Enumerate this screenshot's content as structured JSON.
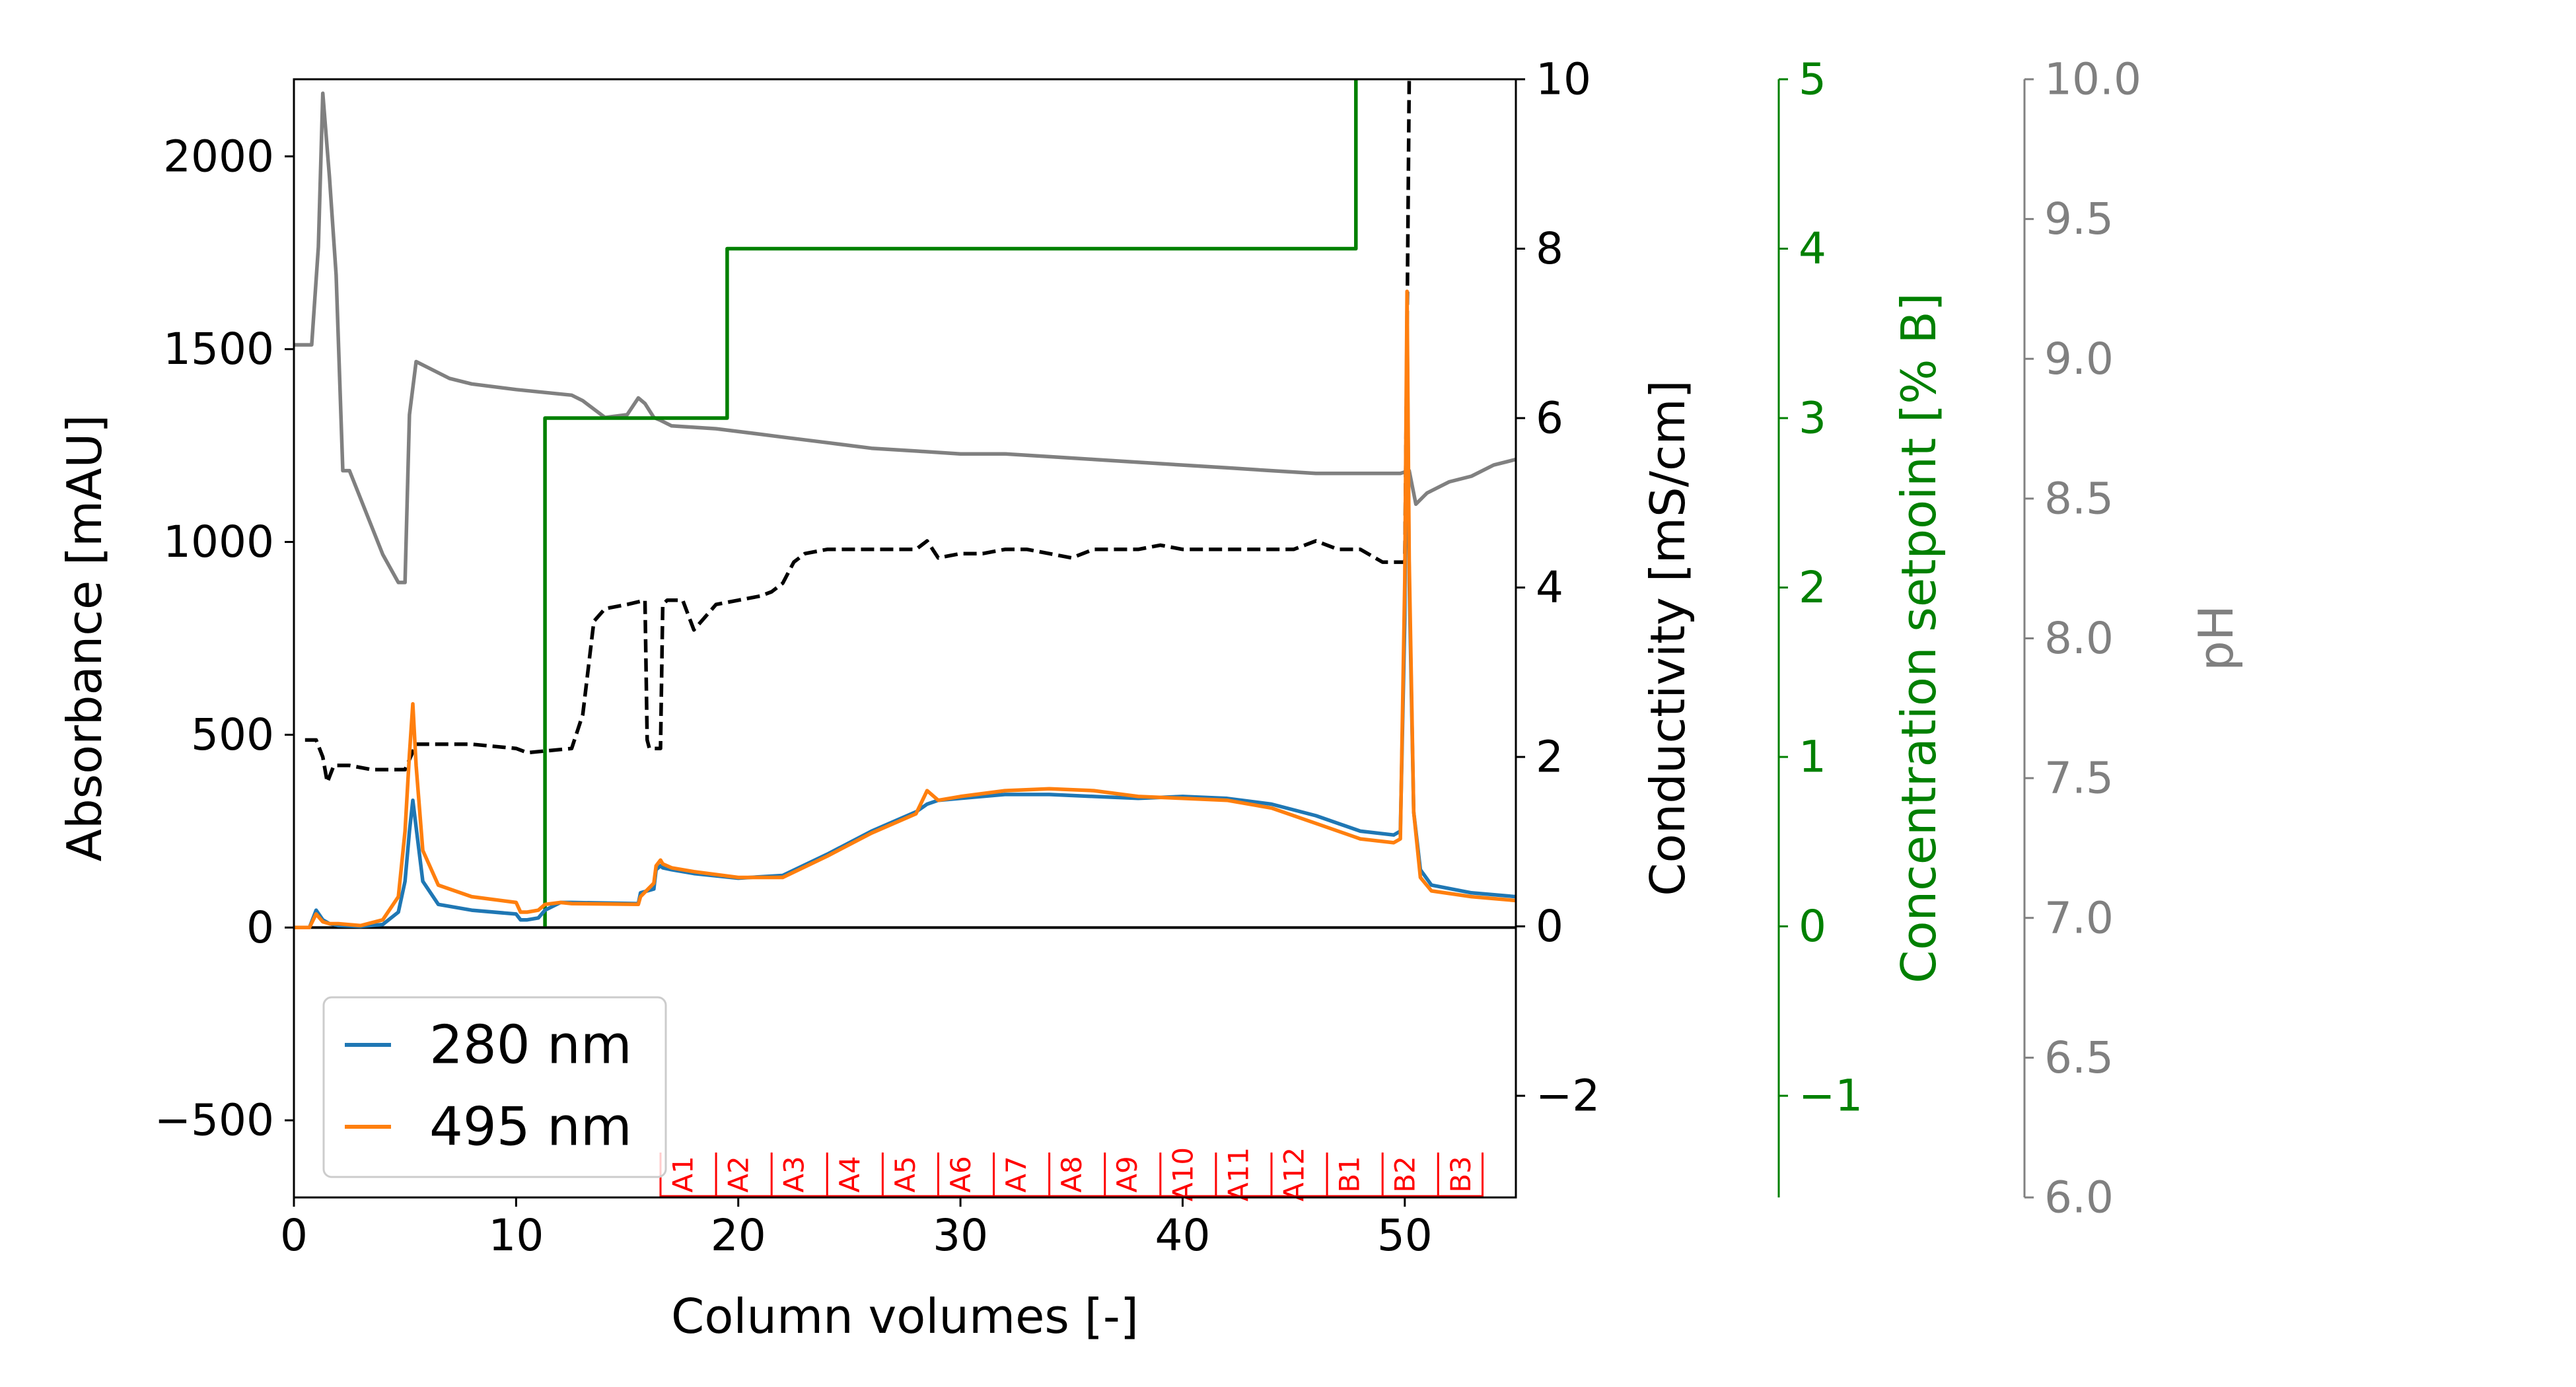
{
  "chart_data": {
    "type": "line",
    "xlabel": "Column volumes [-]",
    "xlim": [
      0,
      55
    ],
    "x_ticks": [
      0,
      10,
      20,
      30,
      40,
      50
    ],
    "axes": {
      "absorbance": {
        "label": "Absorbance [mAU]",
        "lim": [
          -700,
          2200
        ],
        "ticks": [
          -500,
          0,
          500,
          1000,
          1500,
          2000
        ],
        "tick_labels": [
          "−500",
          "0",
          "500",
          "1000",
          "1500",
          "2000"
        ],
        "color": "#000000"
      },
      "conductivity": {
        "label": "Conductivity [mS/cm]",
        "lim": [
          -3.2,
          10
        ],
        "ticks": [
          -2,
          0,
          2,
          4,
          6,
          8,
          10
        ],
        "tick_labels": [
          "−2",
          "0",
          "2",
          "4",
          "6",
          "8",
          "10"
        ],
        "color": "#000000"
      },
      "concentration": {
        "label": "Concentration setpoint [% B]",
        "lim": [
          -1.6,
          5
        ],
        "ticks": [
          -1,
          0,
          1,
          2,
          3,
          4,
          5
        ],
        "tick_labels": [
          "−1",
          "0",
          "1",
          "2",
          "3",
          "4",
          "5"
        ],
        "color": "#008000"
      },
      "ph": {
        "label": "pH",
        "lim": [
          6.0,
          10.0
        ],
        "ticks": [
          6.0,
          6.5,
          7.0,
          7.5,
          8.0,
          8.5,
          9.0,
          9.5,
          10.0
        ],
        "tick_labels": [
          "6.0",
          "6.5",
          "7.0",
          "7.5",
          "8.0",
          "8.5",
          "9.0",
          "9.5",
          "10.0"
        ],
        "color": "#808080"
      }
    },
    "series": [
      {
        "name": "280 nm",
        "axis": "absorbance",
        "color": "#1f77b4",
        "x": [
          0,
          0.7,
          1.0,
          1.3,
          1.6,
          2.0,
          3.0,
          4.0,
          4.7,
          5.0,
          5.2,
          5.35,
          5.5,
          5.8,
          6.5,
          8,
          10,
          10.2,
          10.5,
          11.0,
          11.3,
          12.0,
          12.5,
          15.5,
          15.6,
          16.2,
          16.3,
          16.5,
          16.6,
          17.0,
          18,
          20,
          22,
          24,
          26,
          28,
          28.5,
          29,
          30,
          32,
          34,
          36,
          38,
          40,
          42,
          44,
          46,
          48,
          49.5,
          49.8,
          50.0,
          50.1,
          50.2,
          50.4,
          50.7,
          51.2,
          53,
          55
        ],
        "y": [
          0,
          0,
          45,
          20,
          10,
          5,
          3,
          8,
          40,
          120,
          250,
          330,
          260,
          120,
          60,
          45,
          35,
          20,
          20,
          25,
          45,
          65,
          65,
          62,
          90,
          100,
          150,
          160,
          155,
          150,
          140,
          128,
          135,
          190,
          250,
          300,
          320,
          330,
          335,
          345,
          345,
          340,
          335,
          340,
          335,
          320,
          290,
          250,
          240,
          250,
          800,
          1600,
          900,
          300,
          150,
          110,
          90,
          80
        ]
      },
      {
        "name": "495 nm",
        "axis": "absorbance",
        "color": "#ff7f0e",
        "x": [
          0,
          0.7,
          1.0,
          1.3,
          1.6,
          2.0,
          3.0,
          4.0,
          4.7,
          5.0,
          5.2,
          5.35,
          5.5,
          5.8,
          6.5,
          8,
          10,
          10.2,
          10.5,
          11.0,
          11.3,
          12.0,
          12.5,
          15.5,
          15.6,
          16.2,
          16.3,
          16.5,
          16.6,
          17.0,
          18,
          20,
          22,
          24,
          26,
          28,
          28.5,
          29,
          30,
          32,
          34,
          36,
          38,
          40,
          42,
          44,
          46,
          48,
          49.5,
          49.8,
          50.0,
          50.1,
          50.2,
          50.4,
          50.7,
          51.2,
          53,
          55
        ],
        "y": [
          0,
          0,
          35,
          15,
          10,
          10,
          5,
          20,
          80,
          250,
          450,
          580,
          420,
          200,
          110,
          80,
          65,
          40,
          40,
          45,
          60,
          65,
          62,
          60,
          80,
          115,
          160,
          175,
          165,
          155,
          145,
          130,
          130,
          185,
          245,
          295,
          355,
          330,
          340,
          355,
          360,
          355,
          340,
          335,
          330,
          310,
          270,
          230,
          220,
          230,
          900,
          1650,
          950,
          300,
          130,
          95,
          80,
          70
        ]
      },
      {
        "name": "Conductivity",
        "axis": "conductivity",
        "color": "#000000",
        "dash": true,
        "x": [
          0.5,
          1.0,
          1.3,
          1.5,
          1.8,
          2.5,
          3.5,
          5.0,
          5.5,
          8.0,
          10.0,
          10.5,
          12.5,
          13.0,
          13.5,
          14.0,
          15.0,
          15.8,
          15.9,
          16.0,
          16.5,
          16.6,
          16.8,
          17.5,
          18.0,
          19.0,
          20.0,
          21.0,
          21.5,
          22.0,
          22.5,
          23.0,
          24.0,
          25.0,
          26.0,
          27.0,
          28.0,
          28.5,
          29.0,
          30.0,
          31.0,
          32.0,
          33.0,
          34.0,
          35.0,
          36.0,
          37.0,
          38.0,
          39.0,
          40.0,
          41.0,
          42.0,
          43.0,
          44.0,
          45.0,
          46.0,
          47.0,
          48.0,
          49.0,
          50.0,
          50.1,
          50.2
        ],
        "y": [
          2.2,
          2.2,
          2.0,
          1.7,
          1.9,
          1.9,
          1.85,
          1.85,
          2.15,
          2.15,
          2.1,
          2.05,
          2.1,
          2.5,
          3.6,
          3.75,
          3.8,
          3.85,
          2.2,
          2.1,
          2.1,
          3.8,
          3.85,
          3.85,
          3.5,
          3.8,
          3.85,
          3.9,
          3.95,
          4.05,
          4.3,
          4.4,
          4.45,
          4.45,
          4.45,
          4.45,
          4.45,
          4.55,
          4.35,
          4.4,
          4.4,
          4.45,
          4.45,
          4.4,
          4.35,
          4.45,
          4.45,
          4.45,
          4.5,
          4.45,
          4.45,
          4.45,
          4.45,
          4.45,
          4.45,
          4.55,
          4.45,
          4.45,
          4.3,
          4.3,
          7.0,
          10.0
        ]
      },
      {
        "name": "Concentration setpoint",
        "axis": "concentration",
        "color": "#008000",
        "x": [
          11.3,
          11.3,
          19.5,
          19.5,
          47.8,
          47.8
        ],
        "y": [
          0,
          3,
          3,
          4,
          4,
          5
        ]
      },
      {
        "name": "pH",
        "axis": "ph",
        "color": "#808080",
        "x": [
          0,
          0.8,
          1.1,
          1.3,
          1.6,
          1.9,
          2.2,
          2.5,
          3.0,
          4.0,
          4.7,
          5.0,
          5.2,
          5.5,
          6.0,
          7.0,
          8.0,
          10.0,
          12.5,
          13.0,
          14.0,
          15.0,
          15.5,
          15.8,
          16.2,
          16.5,
          17.0,
          19.0,
          21.0,
          22.0,
          24.0,
          26.0,
          28.0,
          30.0,
          32.0,
          34.0,
          36.0,
          38.0,
          40.0,
          42.0,
          44.0,
          46.0,
          48.0,
          49.5,
          49.8,
          50.2,
          50.5,
          51.0,
          52.0,
          53.0,
          54.0,
          55.0
        ],
        "y": [
          9.05,
          9.05,
          9.4,
          9.95,
          9.65,
          9.3,
          8.6,
          8.6,
          8.5,
          8.3,
          8.2,
          8.2,
          8.8,
          8.99,
          8.97,
          8.93,
          8.91,
          8.89,
          8.87,
          8.85,
          8.79,
          8.8,
          8.86,
          8.84,
          8.79,
          8.78,
          8.76,
          8.75,
          8.73,
          8.72,
          8.7,
          8.68,
          8.67,
          8.66,
          8.66,
          8.65,
          8.64,
          8.63,
          8.62,
          8.61,
          8.6,
          8.59,
          8.59,
          8.59,
          8.59,
          8.6,
          8.48,
          8.52,
          8.56,
          8.58,
          8.62,
          8.64
        ]
      }
    ],
    "legend": {
      "position": "lower-left",
      "entries": [
        "280 nm",
        "495 nm"
      ]
    },
    "fractions": {
      "color": "#ff0000",
      "labels": [
        "A1",
        "A2",
        "A3",
        "A4",
        "A5",
        "A6",
        "A7",
        "A8",
        "A9",
        "A10",
        "A11",
        "A12",
        "B1",
        "B2",
        "B3"
      ],
      "boundaries": [
        16.5,
        19.0,
        21.5,
        24.0,
        26.5,
        29.0,
        31.5,
        34.0,
        36.5,
        39.0,
        41.5,
        44.0,
        46.5,
        49.0,
        51.5,
        53.5
      ]
    }
  }
}
